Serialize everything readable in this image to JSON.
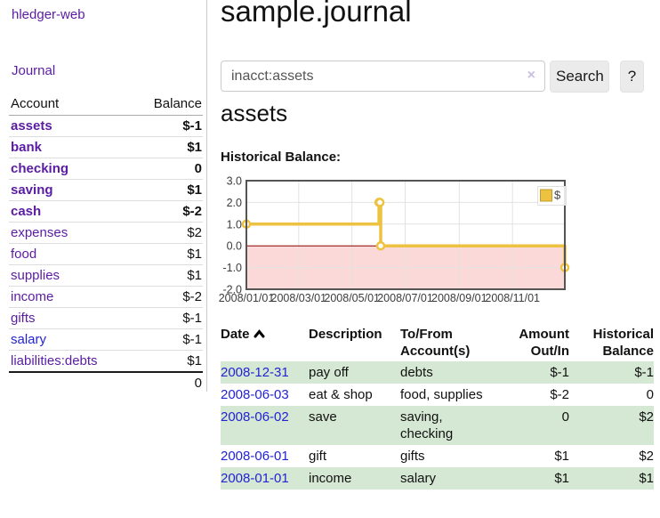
{
  "app": {
    "brand": "hledger-web",
    "nav": {
      "journal_label": "Journal"
    }
  },
  "sidebar": {
    "columns": {
      "account": "Account",
      "balance": "Balance"
    },
    "accounts": [
      {
        "name": "assets",
        "balance": "$-1",
        "indent": 1,
        "bold": true,
        "balance_tone": "neg-strong"
      },
      {
        "name": "bank",
        "balance": "$1",
        "indent": 2,
        "bold": true,
        "balance_tone": "normal"
      },
      {
        "name": "checking",
        "balance": "0",
        "indent": 3,
        "bold": true,
        "balance_tone": "normal"
      },
      {
        "name": "saving",
        "balance": "$1",
        "indent": 3,
        "bold": true,
        "balance_tone": "normal"
      },
      {
        "name": "cash",
        "balance": "$-2",
        "indent": 2,
        "bold": true,
        "balance_tone": "neg-strong"
      },
      {
        "name": "expenses",
        "balance": "$2",
        "indent": 1,
        "bold": false,
        "balance_tone": "normal"
      },
      {
        "name": "food",
        "balance": "$1",
        "indent": 2,
        "bold": false,
        "balance_tone": "normal"
      },
      {
        "name": "supplies",
        "balance": "$1",
        "indent": 2,
        "bold": false,
        "balance_tone": "normal"
      },
      {
        "name": "income",
        "balance": "$-2",
        "indent": 1,
        "bold": false,
        "balance_tone": "neg-soft"
      },
      {
        "name": "gifts",
        "balance": "$-1",
        "indent": 2,
        "bold": false,
        "balance_tone": "neg-soft"
      },
      {
        "name": "salary",
        "balance": "$-1",
        "indent": 2,
        "bold": false,
        "balance_tone": "neg-soft",
        "link_color": "blue"
      },
      {
        "name": "liabilities:debts",
        "balance": "$1",
        "indent": 1,
        "bold": false,
        "balance_tone": "normal"
      }
    ],
    "total": "0"
  },
  "header": {
    "title": "sample.journal"
  },
  "search": {
    "value": "inacct:assets",
    "clear_icon": "×",
    "button_label": "Search",
    "help_label": "?"
  },
  "account_page": {
    "heading": "assets",
    "chart_label": "Historical Balance:"
  },
  "chart_data": {
    "type": "line",
    "step": true,
    "title": "Historical Balance:",
    "legend": "$",
    "legend_position": "top-right",
    "grid": true,
    "x_range": [
      "2008-01-01",
      "2008-12-31"
    ],
    "ylim": [
      -2,
      3
    ],
    "yticks": [
      [
        3,
        "3.0"
      ],
      [
        2,
        "2.0"
      ],
      [
        1,
        "1.0"
      ],
      [
        0,
        "0.0"
      ],
      [
        -1,
        "-1.0"
      ],
      [
        -2,
        "-2.0"
      ]
    ],
    "xticks": [
      [
        "2008-01-01",
        "2008/01/01"
      ],
      [
        "2008-03-01",
        "2008/03/01"
      ],
      [
        "2008-05-01",
        "2008/05/01"
      ],
      [
        "2008-07-01",
        "2008/07/01"
      ],
      [
        "2008-09-01",
        "2008/09/01"
      ],
      [
        "2008-11-01",
        "2008/11/01"
      ]
    ],
    "series": [
      {
        "name": "$",
        "color": "#edc240",
        "marker": "open-circle",
        "points": [
          [
            "2008-01-01",
            1
          ],
          [
            "2008-06-01",
            2
          ],
          [
            "2008-06-02",
            2
          ],
          [
            "2008-06-03",
            0
          ],
          [
            "2008-12-31",
            -1
          ]
        ]
      }
    ],
    "zero_line_color": "#8b0000",
    "negative_region_fill": "#fbd9d9",
    "grid_color": "#e2e2e2",
    "border_color": "#545454"
  },
  "register": {
    "headers": {
      "date": "Date",
      "description": "Description",
      "accounts": "To/From Account(s)",
      "amount": "Amount Out/In",
      "balance": "Historical Balance"
    },
    "sort": {
      "column": "date",
      "direction": "asc",
      "icon": "chevron-up"
    },
    "rows": [
      {
        "date": "2008-12-31",
        "description": "pay off",
        "accounts": "debts",
        "amount": "$-1",
        "amount_neg": true,
        "balance": "$-1",
        "balance_neg": true
      },
      {
        "date": "2008-06-03",
        "description": "eat & shop",
        "accounts": "food, supplies",
        "amount": "$-2",
        "amount_neg": true,
        "balance": "0",
        "balance_neg": false
      },
      {
        "date": "2008-06-02",
        "description": "save",
        "accounts": "saving, checking",
        "amount": "0",
        "amount_neg": false,
        "balance": "$2",
        "balance_neg": false
      },
      {
        "date": "2008-06-01",
        "description": "gift",
        "accounts": "gifts",
        "amount": "$1",
        "amount_neg": false,
        "balance": "$2",
        "balance_neg": false
      },
      {
        "date": "2008-01-01",
        "description": "income",
        "accounts": "salary",
        "amount": "$1",
        "amount_neg": false,
        "balance": "$1",
        "balance_neg": false
      }
    ]
  },
  "colors": {
    "link_purple": "#5a1ca3",
    "link_blue": "#2323d3",
    "negative_strong": "#9a1b20",
    "negative_soft": "#c07470",
    "row_stripe_green": "#d5e8d3",
    "series_gold": "#edc240"
  }
}
